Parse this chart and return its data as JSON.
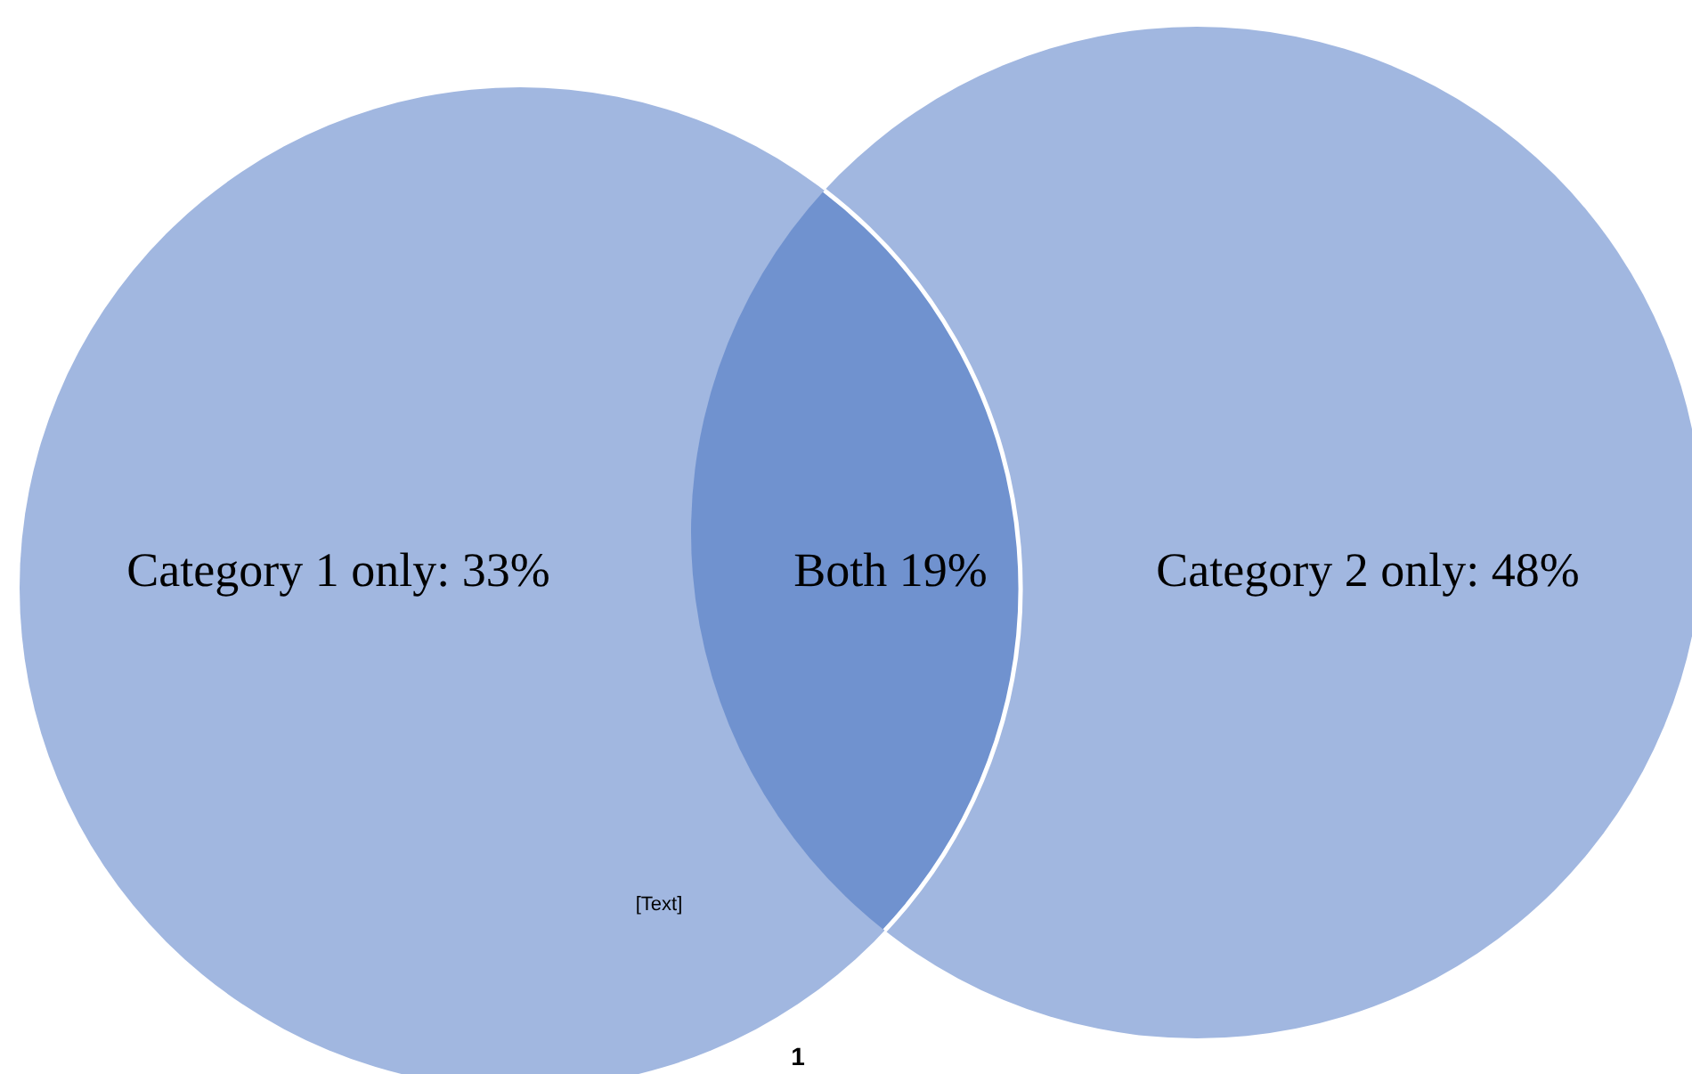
{
  "chart_data": {
    "type": "other",
    "categories": [
      null,
      null,
      null
    ],
    "values": [
      33,
      19,
      48
    ],
    "value_labels": [
      "Category 1 only: 33%",
      "Both 19%",
      "Category 2 only: 48%"
    ],
    "colors": [
      "#a1b7e0",
      "#7092cf",
      "#a1b7e0"
    ],
    "annotations": [
      "[Text]",
      "1"
    ]
  }
}
